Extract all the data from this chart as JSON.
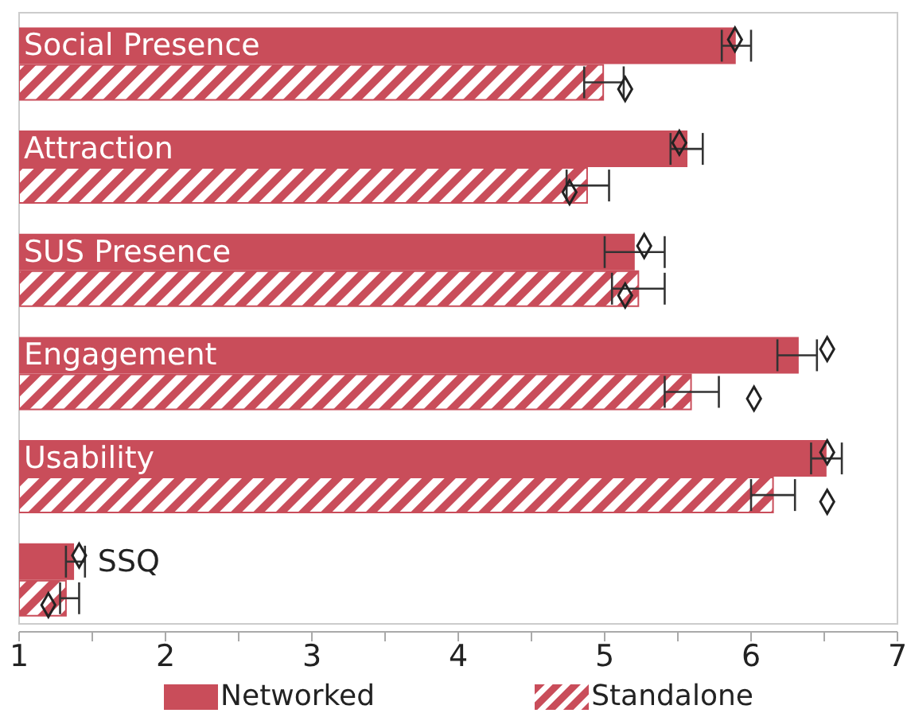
{
  "chart_data": {
    "type": "bar",
    "orientation": "horizontal",
    "categories": [
      "Social Presence",
      "Attraction",
      "SUS Presence",
      "Engagement",
      "Usability",
      "SSQ"
    ],
    "series": [
      {
        "name": "Networked",
        "color": "#c94d5a",
        "values": [
          5.89,
          5.56,
          5.2,
          6.32,
          6.51,
          1.37
        ],
        "errors": [
          [
            5.8,
            6.0
          ],
          [
            5.45,
            5.67
          ],
          [
            5.0,
            5.41
          ],
          [
            6.18,
            6.45
          ],
          [
            6.41,
            6.62
          ],
          [
            1.32,
            1.45
          ]
        ]
      },
      {
        "name": "Standalone",
        "color": "#c94d5a",
        "values": [
          4.99,
          4.88,
          5.23,
          5.59,
          6.15,
          1.32
        ],
        "errors": [
          [
            4.86,
            5.13
          ],
          [
            4.74,
            5.03
          ],
          [
            5.05,
            5.41
          ],
          [
            5.41,
            5.78
          ],
          [
            6.0,
            6.3
          ],
          [
            1.28,
            1.41
          ]
        ]
      },
      {
        "type": "scatter",
        "color": "#222222",
        "values": [
          5.89,
          5.51,
          5.27,
          6.52,
          6.52,
          1.41
        ]
      },
      {
        "type": "scatter",
        "color": "#222222",
        "values": [
          5.14,
          4.76,
          5.14,
          6.02,
          6.52,
          1.2
        ]
      }
    ],
    "xlim": [
      1,
      7
    ],
    "xticks": [
      1,
      {
        "value": 1.5,
        "label": null
      },
      2,
      {
        "value": 2.5,
        "label": null
      },
      3,
      {
        "value": 3.5,
        "label": null
      },
      4,
      {
        "value": 4.5,
        "label": null
      },
      5,
      {
        "value": 5.5,
        "label": null
      },
      6,
      {
        "value": 6.5,
        "label": null
      },
      7
    ],
    "marker": "diamond",
    "legend": "bottom",
    "grid": false
  }
}
